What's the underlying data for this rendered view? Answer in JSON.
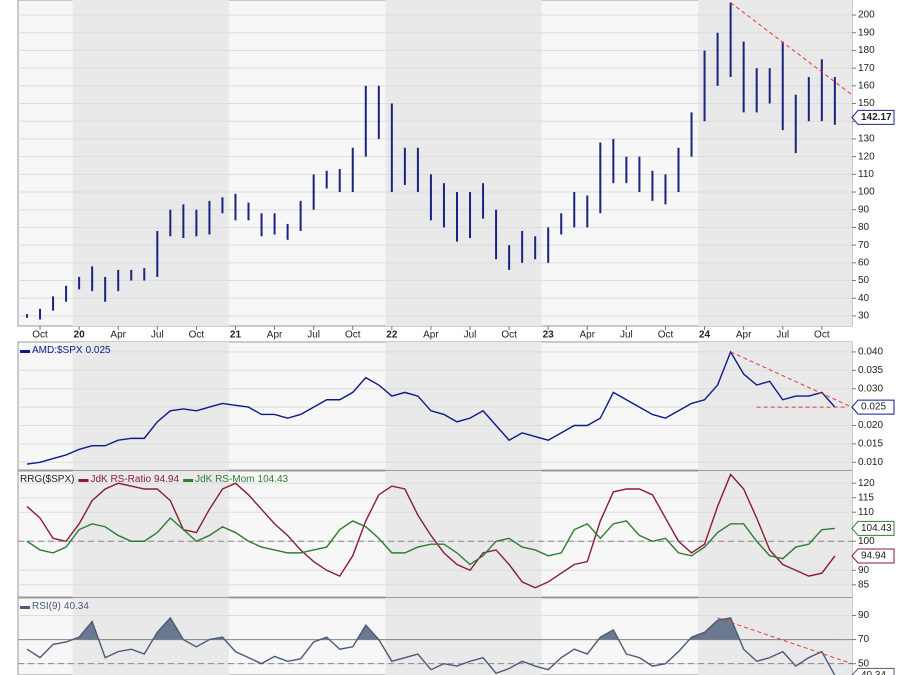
{
  "chart_data": [
    {
      "type": "hilo",
      "color": "#1a237e",
      "categories": [
        null,
        "Oct",
        null,
        null,
        "20",
        null,
        null,
        "Apr",
        null,
        null,
        "Jul",
        null,
        null,
        "Oct",
        null,
        null,
        "21",
        null,
        null,
        "Apr",
        null,
        null,
        "Jul",
        null,
        null,
        "Oct",
        null,
        null,
        "22",
        null,
        null,
        "Apr",
        null,
        null,
        "Jul",
        null,
        null,
        "Oct",
        null,
        null,
        "23",
        null,
        null,
        "Apr",
        null,
        null,
        "Jul",
        null,
        null,
        "Oct",
        null,
        null,
        "24",
        null,
        null,
        "Apr",
        null,
        null,
        "Jul",
        null,
        null,
        "Oct",
        null
      ],
      "highs": [
        31,
        34,
        41,
        47,
        52,
        58,
        52,
        56,
        56,
        57,
        78,
        90,
        93,
        90,
        95,
        97,
        99,
        94,
        88,
        88,
        82,
        95,
        110,
        112,
        113,
        125,
        160,
        160,
        150,
        125,
        125,
        110,
        105,
        100,
        100,
        105,
        90,
        70,
        78,
        75,
        80,
        88,
        100,
        98,
        128,
        130,
        120,
        120,
        112,
        110,
        125,
        145,
        180,
        190,
        207,
        185,
        170,
        170,
        185,
        155,
        165,
        175,
        165
      ],
      "lows": [
        29,
        28,
        33,
        38,
        45,
        44,
        38,
        44,
        50,
        50,
        52,
        75,
        74,
        75,
        76,
        88,
        84,
        84,
        75,
        76,
        73,
        78,
        90,
        102,
        100,
        100,
        120,
        130,
        100,
        104,
        100,
        84,
        80,
        72,
        74,
        85,
        62,
        56,
        60,
        62,
        60,
        76,
        80,
        80,
        88,
        105,
        105,
        100,
        95,
        93,
        100,
        120,
        140,
        160,
        165,
        145,
        145,
        150,
        135,
        122,
        140,
        140,
        138
      ],
      "last": 142.17,
      "ylim": [
        24.3,
        208.5
      ],
      "yticks": [
        30,
        40,
        50,
        60,
        70,
        80,
        90,
        100,
        110,
        120,
        130,
        140,
        150,
        160,
        170,
        180,
        190,
        200
      ],
      "trendlines": [
        {
          "x": [
            54,
            63.3
          ],
          "y": [
            207,
            155
          ]
        }
      ]
    },
    {
      "type": "line",
      "series": [
        {
          "name": "AMD:$SPX",
          "color": "#0d1a8a",
          "values": [
            0.0095,
            0.01,
            0.011,
            0.012,
            0.0135,
            0.0145,
            0.0145,
            0.016,
            0.0165,
            0.0165,
            0.021,
            0.024,
            0.0245,
            0.024,
            0.025,
            0.026,
            0.0255,
            0.025,
            0.023,
            0.023,
            0.022,
            0.023,
            0.025,
            0.027,
            0.027,
            0.029,
            0.033,
            0.031,
            0.028,
            0.029,
            0.028,
            0.024,
            0.023,
            0.021,
            0.022,
            0.024,
            0.02,
            0.016,
            0.018,
            0.017,
            0.016,
            0.018,
            0.02,
            0.02,
            0.022,
            0.029,
            0.027,
            0.025,
            0.023,
            0.022,
            0.024,
            0.026,
            0.027,
            0.031,
            0.04,
            0.034,
            0.031,
            0.032,
            0.027,
            0.028,
            0.028,
            0.029,
            0.025
          ]
        }
      ],
      "ylim": [
        0.0079,
        0.0427
      ],
      "yticks": [
        {
          "value": 0.01,
          "label": "0.010"
        },
        {
          "value": 0.015,
          "label": "0.015"
        },
        {
          "value": 0.02,
          "label": "0.020"
        },
        {
          "value": 0.025,
          "label": "0.025"
        },
        {
          "value": 0.03,
          "label": "0.030"
        },
        {
          "value": 0.035,
          "label": "0.035"
        },
        {
          "value": 0.04,
          "label": "0.040"
        }
      ],
      "trendlines": [
        {
          "x": [
            54,
            63.3
          ],
          "y": [
            0.04,
            0.025
          ]
        },
        {
          "x": [
            56,
            63
          ],
          "y": [
            0.025,
            0.025
          ]
        }
      ]
    },
    {
      "type": "line",
      "title": "RRG($SPX)",
      "series": [
        {
          "name": "JdK RS-Ratio",
          "color": "#8b1a3a",
          "values": [
            112,
            108,
            101,
            100,
            106,
            114,
            118,
            120,
            119,
            118,
            118,
            114,
            104,
            103,
            111,
            118,
            120,
            116,
            111,
            106,
            102,
            97,
            93,
            90,
            88,
            95,
            107,
            116,
            119,
            118,
            109,
            102,
            96,
            92,
            90,
            96,
            97,
            92,
            86,
            84,
            86,
            89,
            92,
            93,
            107,
            117,
            118,
            118,
            116,
            108,
            100,
            96,
            99,
            112,
            123,
            118,
            108,
            97,
            92,
            90,
            88,
            89,
            94.94
          ]
        },
        {
          "name": "JdK RS-Mom",
          "color": "#2e7d32",
          "values": [
            100,
            97,
            96,
            98,
            104,
            106,
            105,
            102,
            100,
            100,
            103,
            108,
            104,
            100,
            102,
            105,
            103,
            100,
            98,
            97,
            96,
            96,
            97,
            98,
            104,
            107,
            105,
            101,
            96,
            96,
            98,
            99,
            99,
            96,
            92,
            95,
            100,
            101,
            98,
            97,
            95,
            96,
            104,
            106,
            101,
            106,
            107,
            102,
            100,
            101,
            96,
            95,
            98,
            103,
            106,
            106,
            100,
            95,
            94,
            98,
            99,
            104,
            104.43
          ]
        }
      ],
      "ylim": [
        80.8,
        124.2
      ],
      "yticks": [
        85,
        90,
        100,
        110,
        115,
        120
      ],
      "hlines": [
        {
          "value": 100,
          "style": "dashed"
        }
      ]
    },
    {
      "type": "line",
      "series": [
        {
          "name": "RSI(9)",
          "color": "#4a5a78",
          "fill_above": 70,
          "values": [
            62,
            55,
            66,
            68,
            72,
            85,
            55,
            60,
            62,
            58,
            76,
            88,
            70,
            64,
            70,
            72,
            60,
            55,
            50,
            56,
            52,
            54,
            68,
            72,
            62,
            64,
            82,
            70,
            52,
            55,
            58,
            45,
            50,
            48,
            52,
            55,
            42,
            46,
            52,
            48,
            45,
            55,
            62,
            58,
            72,
            78,
            58,
            55,
            48,
            50,
            60,
            72,
            76,
            86,
            88,
            62,
            52,
            55,
            60,
            48,
            55,
            60,
            40.34
          ]
        }
      ],
      "ylim": [
        40.6,
        104.5
      ],
      "yticks": [
        50,
        70,
        90
      ],
      "hlines": [
        {
          "value": 70,
          "style": "solid"
        },
        {
          "value": 50,
          "style": "dashed"
        }
      ],
      "trendlines": [
        {
          "x": [
            53,
            63.3
          ],
          "y": [
            88,
            50
          ]
        }
      ]
    }
  ]
}
